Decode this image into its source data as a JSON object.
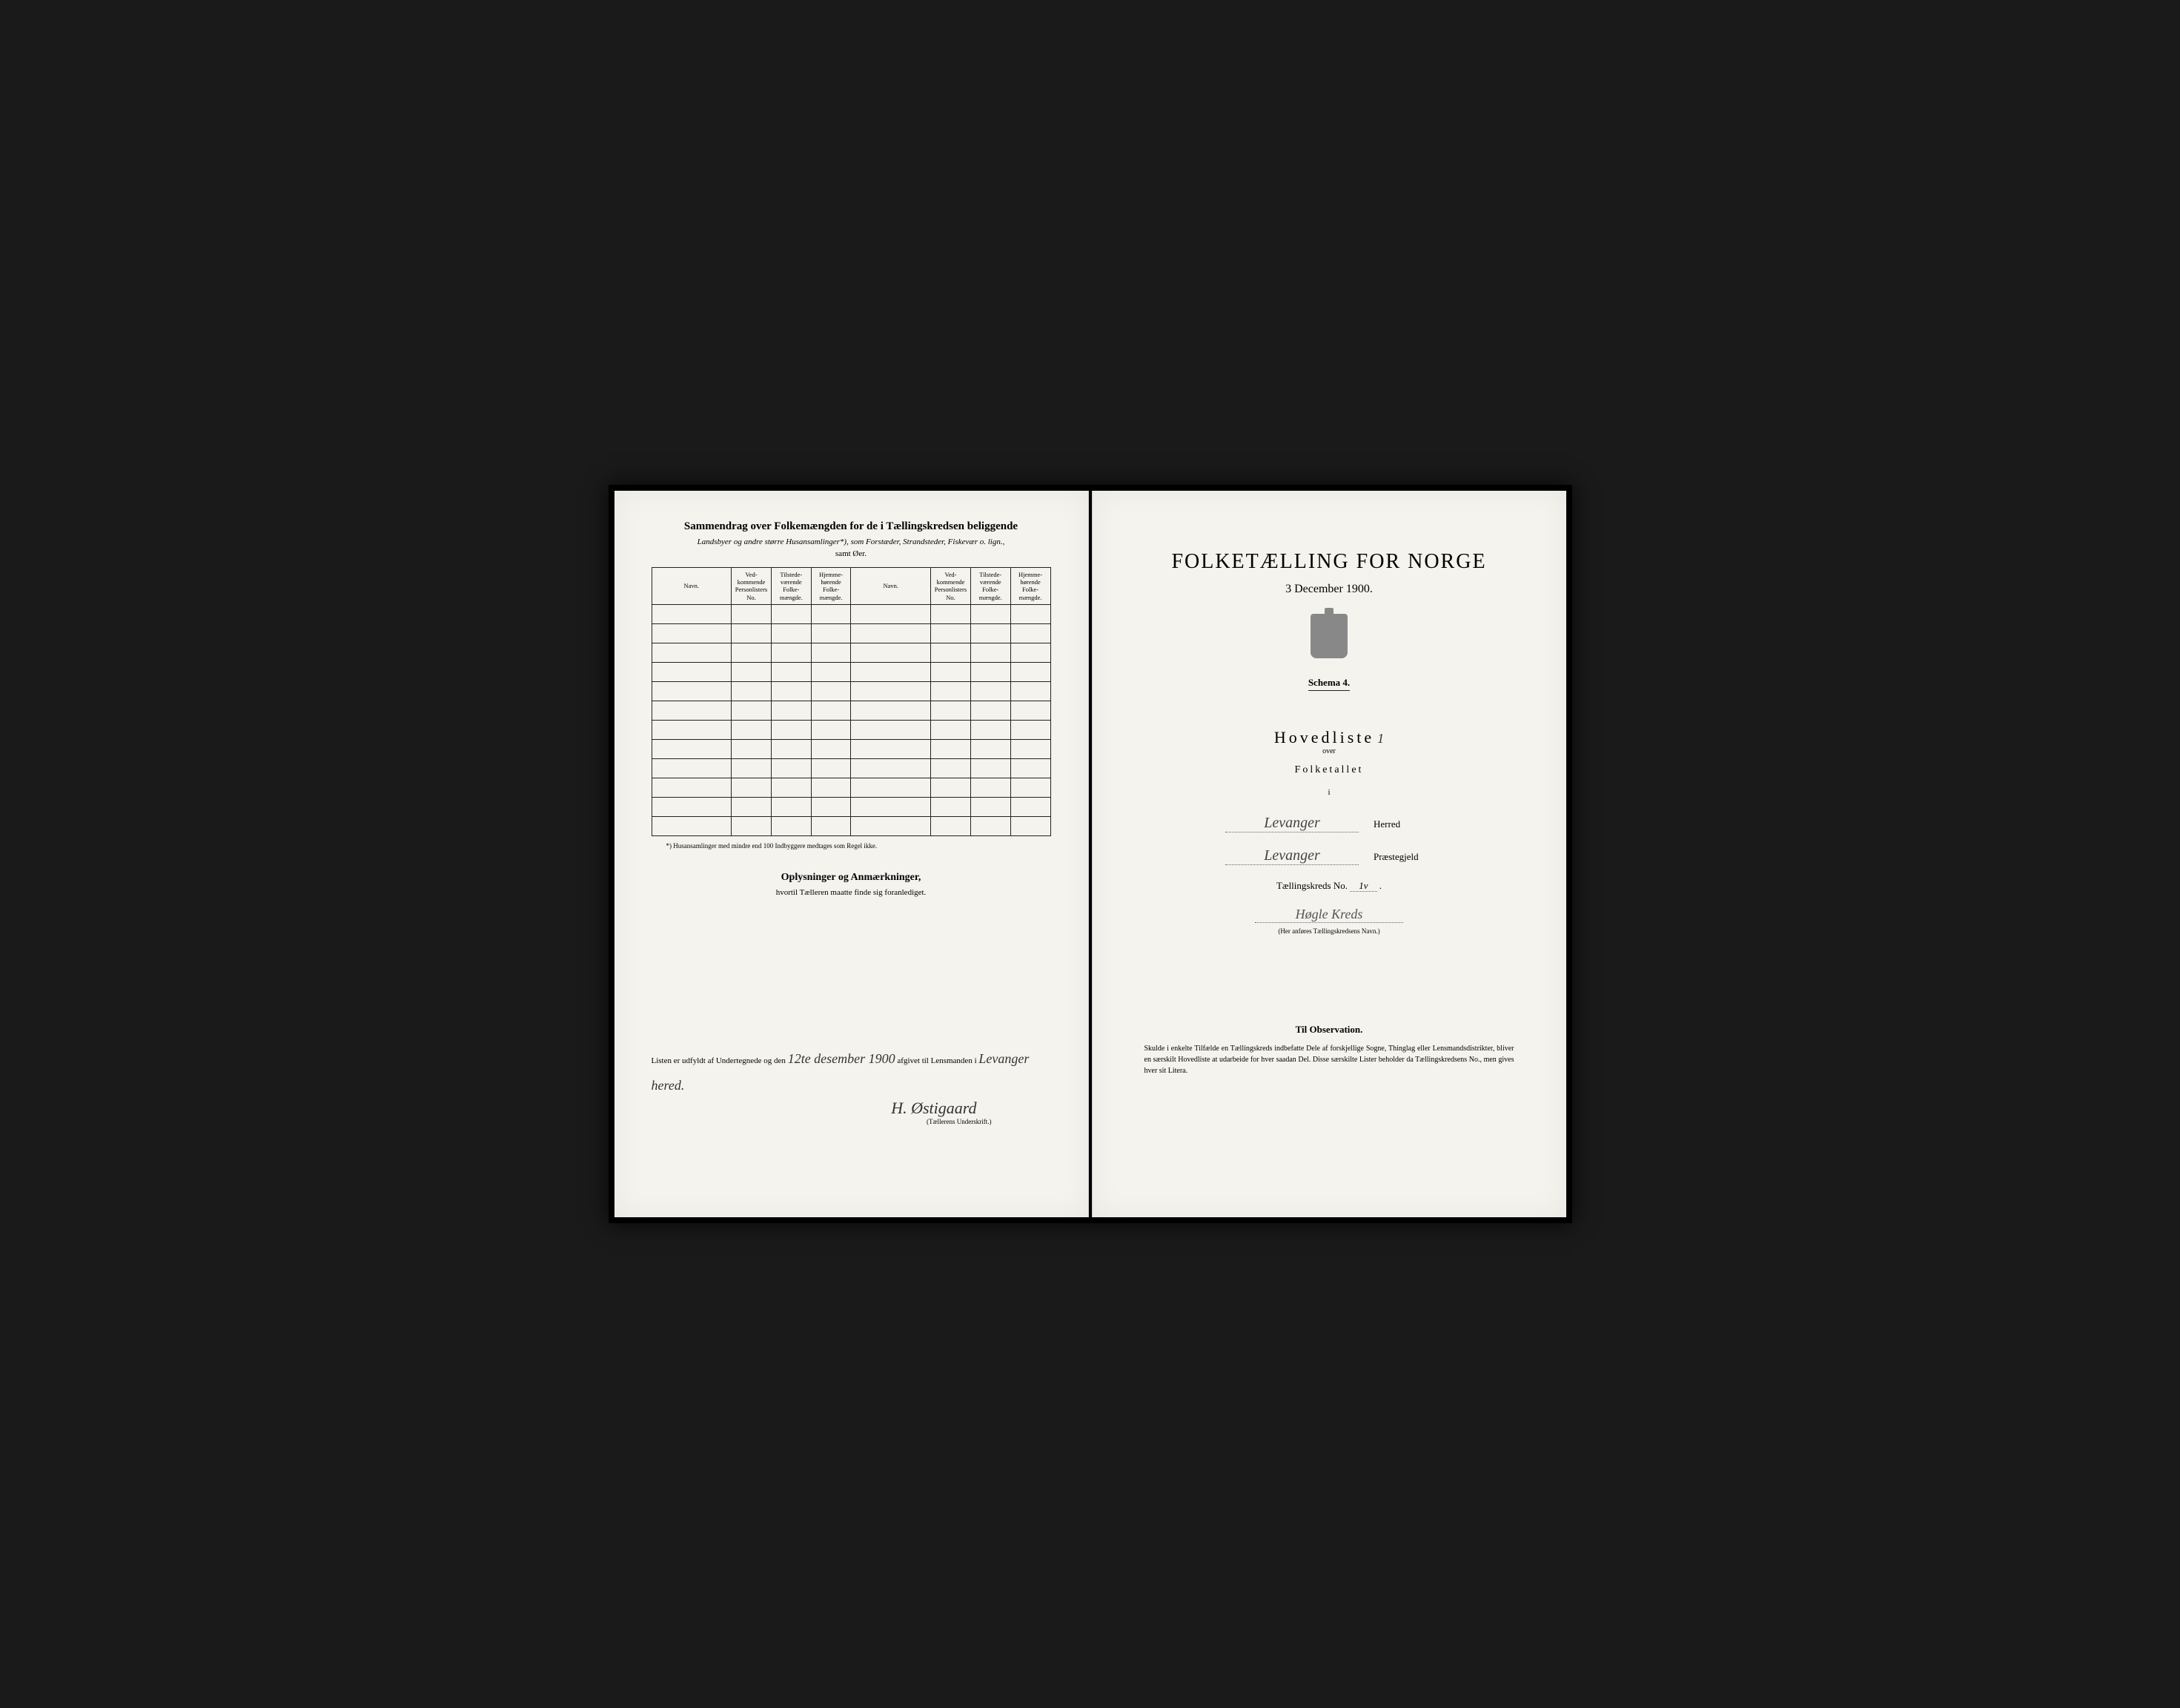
{
  "left": {
    "title": "Sammendrag over Folkemængden for de i Tællingskredsen beliggende",
    "subtitle": "Landsbyer og andre større Husansamlinger*), som Forstæder, Strandsteder, Fiskevær o. lign.,",
    "subtitle2": "samt Øer.",
    "table": {
      "headers": {
        "navn": "Navn.",
        "personlister": "Ved-kommende Personlisters No.",
        "tilstede": "Tilstede-værende Folke-mængde.",
        "hjemme": "Hjemme-hørende Folke-mængde."
      },
      "row_count": 12
    },
    "footnote": "*) Husansamlinger med mindre end 100 Indbyggere medtages som Regel ikke.",
    "oplysninger_title": "Oplysninger og Anmærkninger,",
    "oplysninger_sub": "hvortil Tælleren maatte finde sig foranlediget.",
    "signature": {
      "prefix": "Listen er udfyldt af Undertegnede og den",
      "date": "12te desember 1900",
      "middle": "afgivet til Lensmanden i",
      "place": "Levanger hered.",
      "name": "H. Østigaard",
      "caption": "(Tællerens Underskrift.)"
    }
  },
  "right": {
    "main_title": "FOLKETÆLLING FOR NORGE",
    "date": "3 December 1900.",
    "schema": "Schema 4.",
    "hovedliste": "Hovedliste",
    "hovedliste_no": "1",
    "over": "over",
    "folketallet": "Folketallet",
    "i": "i",
    "herred_value": "Levanger",
    "herred_label": "Herred",
    "prestegjeld_value": "Levanger",
    "prestegjeld_label": "Præstegjeld",
    "kreds_label": "Tællingskreds No.",
    "kreds_no": "1v",
    "kreds_name": "Høgle Kreds",
    "kreds_caption": "(Her anføres Tællingskredsens Navn.)",
    "observation_title": "Til Observation.",
    "observation_text": "Skulde i enkelte Tilfælde en Tællingskreds indbefatte Dele af forskjellige Sogne, Thinglag eller Lensmandsdistrikter, bliver en særskilt Hovedliste at udarbeide for hver saadan Del. Disse særskilte Lister beholder da Tællingskredsens No., men gives hver sit Litera."
  },
  "colors": {
    "paper": "#f5f3ee",
    "ink": "#222222",
    "handwriting": "#444444",
    "background": "#1a1a1a"
  }
}
